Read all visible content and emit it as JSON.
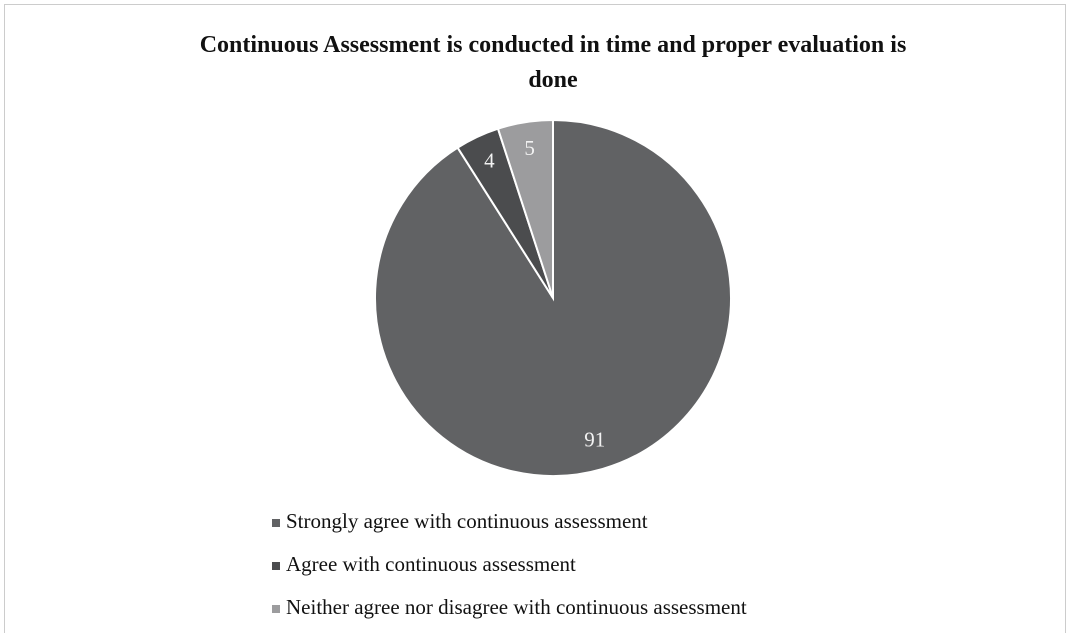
{
  "chart_data": {
    "type": "pie",
    "title": "Continuous Assessment is conducted in time and proper evaluation is done",
    "categories": [
      "Strongly agree with continuous assessment",
      "Agree with continuous assessment",
      "Neither agree nor disagree with continuous assessment"
    ],
    "values": [
      91,
      4,
      5
    ],
    "colors": [
      "#616264",
      "#4b4c4e",
      "#9c9c9e"
    ],
    "legend": "bottom"
  }
}
